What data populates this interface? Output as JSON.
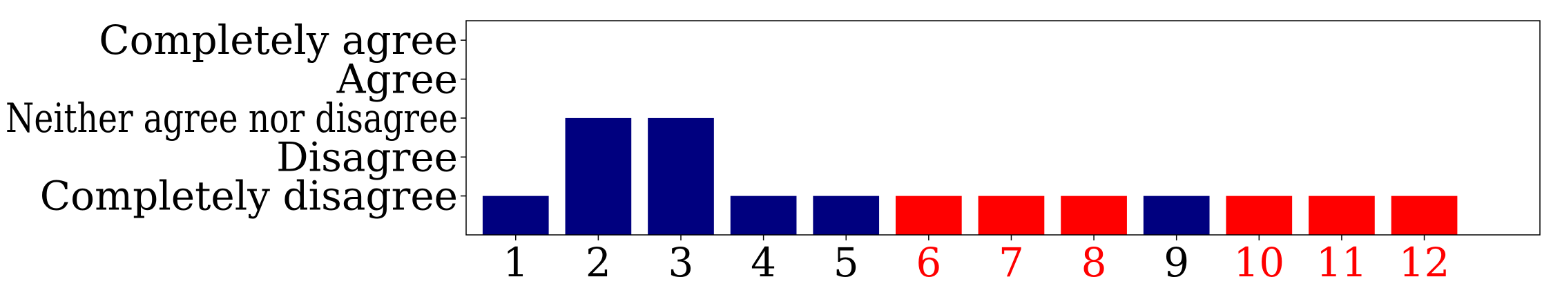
{
  "chart_data": {
    "type": "bar",
    "categories": [
      "1",
      "2",
      "3",
      "4",
      "5",
      "6",
      "7",
      "8",
      "9",
      "10",
      "11",
      "12"
    ],
    "values": [
      1,
      3,
      3,
      1,
      1,
      1,
      1,
      1,
      1,
      1,
      1,
      1
    ],
    "y_tick_values": [
      1,
      2,
      3,
      4,
      5
    ],
    "y_tick_labels": [
      "Completely disagree",
      "Disagree",
      "Neither agree nor disagree",
      "Agree",
      "Completely agree"
    ],
    "ylim": [
      0,
      5
    ],
    "xlabel": "",
    "ylabel": "",
    "title": "",
    "grid": false,
    "bar_colors": [
      "#00007f",
      "#00007f",
      "#00007f",
      "#00007f",
      "#00007f",
      "#ff0000",
      "#ff0000",
      "#ff0000",
      "#00007f",
      "#ff0000",
      "#ff0000",
      "#ff0000"
    ],
    "category_label_colors": [
      "#000000",
      "#000000",
      "#000000",
      "#000000",
      "#000000",
      "#ff0000",
      "#ff0000",
      "#ff0000",
      "#000000",
      "#ff0000",
      "#ff0000",
      "#ff0000"
    ]
  }
}
